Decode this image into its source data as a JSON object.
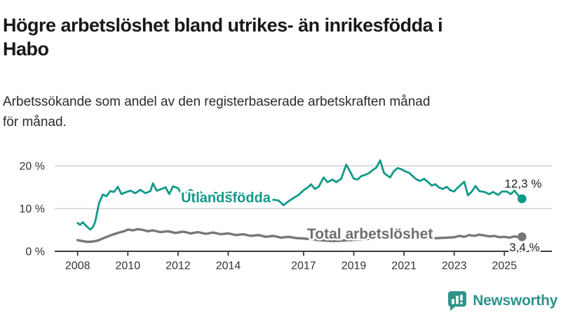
{
  "header": {
    "title_line1": "Högre arbetslöshet bland utrikes- än inrikesfödda i",
    "title_line2": "Habo",
    "subtitle_line1": "Arbetssökande som andel av den registerbaserade arbetskraften månad",
    "subtitle_line2": "för månad."
  },
  "footer": {
    "brand": "Newsworthy"
  },
  "colors": {
    "accent_teal": "#10998a",
    "line_gray": "#77777b",
    "brand_teal": "#2e938b",
    "grid": "#d2d2d2",
    "axis": "#3d3d3d",
    "text": "#191919"
  },
  "chart_data": {
    "type": "line",
    "title": "Högre arbetslöshet bland utrikes- än inrikesfödda i Habo",
    "subtitle": "Arbetssökande som andel av den registerbaserade arbetskraften månad för månad.",
    "xlabel": "",
    "ylabel": "",
    "ylim": [
      0,
      22
    ],
    "x_range": [
      2008,
      2025.7
    ],
    "grid": true,
    "legend_position": "inline-labels",
    "x_ticks": [
      "2008",
      "2010",
      "2012",
      "2014",
      "2017",
      "2019",
      "2021",
      "2023",
      "2025"
    ],
    "x_tick_years": [
      2008,
      2010,
      2012,
      2014,
      2017,
      2019,
      2021,
      2023,
      2025
    ],
    "y_ticks": [
      {
        "label": "0 %",
        "value": 0
      },
      {
        "label": "10 %",
        "value": 10
      },
      {
        "label": "20 %",
        "value": 20
      }
    ],
    "series": [
      {
        "id": "utlandsfodda",
        "name": "Utlandsfödda",
        "color": "#10998a",
        "end_label": "12,3 %",
        "end_value": 12.3,
        "points": [
          [
            2008.0,
            6.6
          ],
          [
            2008.1,
            6.2
          ],
          [
            2008.2,
            6.8
          ],
          [
            2008.35,
            5.9
          ],
          [
            2008.5,
            5.1
          ],
          [
            2008.6,
            5.6
          ],
          [
            2008.7,
            6.9
          ],
          [
            2008.85,
            11.2
          ],
          [
            2009.0,
            13.3
          ],
          [
            2009.15,
            12.9
          ],
          [
            2009.3,
            14.1
          ],
          [
            2009.45,
            13.9
          ],
          [
            2009.6,
            15.1
          ],
          [
            2009.75,
            13.4
          ],
          [
            2009.9,
            13.8
          ],
          [
            2010.1,
            14.2
          ],
          [
            2010.3,
            13.6
          ],
          [
            2010.5,
            14.4
          ],
          [
            2010.7,
            13.6
          ],
          [
            2010.9,
            14.1
          ],
          [
            2011.0,
            15.9
          ],
          [
            2011.15,
            14.2
          ],
          [
            2011.3,
            14.5
          ],
          [
            2011.5,
            15.0
          ],
          [
            2011.65,
            13.4
          ],
          [
            2011.8,
            15.2
          ],
          [
            2012.0,
            14.8
          ],
          [
            2012.15,
            13.3
          ],
          [
            2012.3,
            13.7
          ],
          [
            2012.5,
            14.4
          ],
          [
            2012.7,
            13.5
          ],
          [
            2012.9,
            13.9
          ],
          [
            2013.1,
            12.4
          ],
          [
            2013.3,
            13.3
          ],
          [
            2013.5,
            13.7
          ],
          [
            2013.7,
            13.2
          ],
          [
            2013.9,
            13.6
          ],
          [
            2014.1,
            13.8
          ],
          [
            2014.25,
            12.9
          ],
          [
            2014.4,
            13.5
          ],
          [
            2014.6,
            12.0
          ],
          [
            2014.8,
            12.7
          ],
          [
            2015.0,
            12.3
          ],
          [
            2015.2,
            11.6
          ],
          [
            2015.4,
            12.4
          ],
          [
            2015.6,
            11.6
          ],
          [
            2015.8,
            12.1
          ],
          [
            2016.0,
            11.9
          ],
          [
            2016.2,
            10.8
          ],
          [
            2016.4,
            11.7
          ],
          [
            2016.6,
            12.5
          ],
          [
            2016.8,
            13.2
          ],
          [
            2017.0,
            14.3
          ],
          [
            2017.2,
            15.1
          ],
          [
            2017.3,
            15.7
          ],
          [
            2017.45,
            14.6
          ],
          [
            2017.6,
            15.1
          ],
          [
            2017.8,
            17.3
          ],
          [
            2017.95,
            16.2
          ],
          [
            2018.15,
            16.8
          ],
          [
            2018.3,
            16.2
          ],
          [
            2018.5,
            17.0
          ],
          [
            2018.7,
            20.3
          ],
          [
            2018.85,
            18.7
          ],
          [
            2019.0,
            17.0
          ],
          [
            2019.15,
            16.8
          ],
          [
            2019.3,
            17.6
          ],
          [
            2019.45,
            17.9
          ],
          [
            2019.6,
            18.3
          ],
          [
            2019.75,
            19.0
          ],
          [
            2019.9,
            19.6
          ],
          [
            2020.05,
            21.3
          ],
          [
            2020.2,
            18.4
          ],
          [
            2020.3,
            17.9
          ],
          [
            2020.45,
            17.3
          ],
          [
            2020.6,
            18.8
          ],
          [
            2020.75,
            19.5
          ],
          [
            2020.9,
            19.2
          ],
          [
            2021.05,
            18.7
          ],
          [
            2021.2,
            18.4
          ],
          [
            2021.35,
            17.6
          ],
          [
            2021.5,
            16.8
          ],
          [
            2021.65,
            16.5
          ],
          [
            2021.8,
            17.0
          ],
          [
            2022.0,
            16.0
          ],
          [
            2022.1,
            15.4
          ],
          [
            2022.25,
            15.7
          ],
          [
            2022.4,
            14.9
          ],
          [
            2022.55,
            14.6
          ],
          [
            2022.7,
            15.1
          ],
          [
            2022.85,
            14.3
          ],
          [
            2023.0,
            14.0
          ],
          [
            2023.1,
            14.7
          ],
          [
            2023.25,
            15.5
          ],
          [
            2023.4,
            16.3
          ],
          [
            2023.55,
            13.1
          ],
          [
            2023.7,
            14.0
          ],
          [
            2023.85,
            15.3
          ],
          [
            2024.0,
            14.1
          ],
          [
            2024.2,
            13.9
          ],
          [
            2024.4,
            13.4
          ],
          [
            2024.55,
            13.9
          ],
          [
            2024.75,
            13.2
          ],
          [
            2024.9,
            14.0
          ],
          [
            2025.1,
            14.0
          ],
          [
            2025.25,
            13.4
          ],
          [
            2025.4,
            14.2
          ],
          [
            2025.55,
            13.1
          ],
          [
            2025.7,
            12.3
          ]
        ]
      },
      {
        "id": "total",
        "name": "Total arbetslöshet",
        "color": "#77777b",
        "end_label": "3,4 %",
        "end_value": 3.4,
        "points": [
          [
            2008.0,
            2.6
          ],
          [
            2008.2,
            2.4
          ],
          [
            2008.4,
            2.2
          ],
          [
            2008.6,
            2.3
          ],
          [
            2008.8,
            2.5
          ],
          [
            2009.0,
            3.0
          ],
          [
            2009.3,
            3.7
          ],
          [
            2009.6,
            4.3
          ],
          [
            2009.9,
            4.8
          ],
          [
            2010.0,
            5.1
          ],
          [
            2010.2,
            4.9
          ],
          [
            2010.4,
            5.2
          ],
          [
            2010.6,
            5.0
          ],
          [
            2010.8,
            4.7
          ],
          [
            2011.0,
            4.9
          ],
          [
            2011.3,
            4.5
          ],
          [
            2011.6,
            4.7
          ],
          [
            2011.9,
            4.3
          ],
          [
            2012.2,
            4.6
          ],
          [
            2012.5,
            4.2
          ],
          [
            2012.8,
            4.5
          ],
          [
            2013.1,
            4.1
          ],
          [
            2013.4,
            4.4
          ],
          [
            2013.7,
            4.0
          ],
          [
            2014.0,
            4.2
          ],
          [
            2014.3,
            3.8
          ],
          [
            2014.6,
            4.0
          ],
          [
            2014.9,
            3.6
          ],
          [
            2015.2,
            3.8
          ],
          [
            2015.5,
            3.4
          ],
          [
            2015.8,
            3.6
          ],
          [
            2016.1,
            3.2
          ],
          [
            2016.4,
            3.4
          ],
          [
            2016.7,
            3.1
          ],
          [
            2017.0,
            3.0
          ],
          [
            2017.3,
            2.8
          ],
          [
            2017.6,
            2.6
          ],
          [
            2017.9,
            2.5
          ],
          [
            2018.2,
            2.4
          ],
          [
            2018.5,
            2.5
          ],
          [
            2018.8,
            2.6
          ],
          [
            2019.1,
            2.7
          ],
          [
            2019.4,
            2.8
          ],
          [
            2019.7,
            3.0
          ],
          [
            2020.0,
            3.2
          ],
          [
            2020.3,
            3.7
          ],
          [
            2020.6,
            3.9
          ],
          [
            2020.9,
            3.7
          ],
          [
            2021.2,
            3.5
          ],
          [
            2021.5,
            3.3
          ],
          [
            2021.8,
            3.1
          ],
          [
            2022.1,
            3.0
          ],
          [
            2022.4,
            3.1
          ],
          [
            2022.7,
            3.2
          ],
          [
            2023.0,
            3.3
          ],
          [
            2023.2,
            3.6
          ],
          [
            2023.4,
            3.4
          ],
          [
            2023.6,
            3.8
          ],
          [
            2023.8,
            3.6
          ],
          [
            2024.0,
            3.9
          ],
          [
            2024.2,
            3.7
          ],
          [
            2024.4,
            3.5
          ],
          [
            2024.6,
            3.6
          ],
          [
            2024.8,
            3.3
          ],
          [
            2025.0,
            3.4
          ],
          [
            2025.2,
            3.2
          ],
          [
            2025.4,
            3.5
          ],
          [
            2025.55,
            3.3
          ],
          [
            2025.7,
            3.4
          ]
        ]
      }
    ]
  }
}
